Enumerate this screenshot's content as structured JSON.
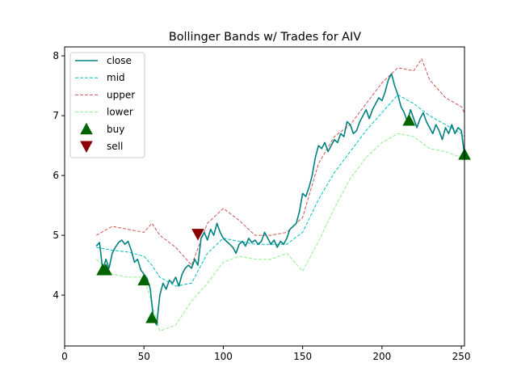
{
  "chart_data": {
    "type": "line",
    "title": "Bollinger Bands w/ Trades for AIV",
    "xlabel": "",
    "ylabel": "",
    "xlim": [
      0,
      252
    ],
    "ylim": [
      3.15,
      8.15
    ],
    "xticks": [
      0,
      50,
      100,
      150,
      200,
      250
    ],
    "yticks": [
      4,
      5,
      6,
      7,
      8
    ],
    "grid": false,
    "legend_location": "upper-left",
    "series": [
      {
        "name": "close",
        "color": "#008080",
        "style": "solid",
        "x": [
          20,
          22,
          24,
          26,
          28,
          30,
          32,
          34,
          36,
          38,
          40,
          42,
          44,
          46,
          48,
          50,
          52,
          54,
          56,
          58,
          60,
          62,
          64,
          66,
          68,
          70,
          72,
          74,
          76,
          78,
          80,
          82,
          84,
          86,
          88,
          90,
          92,
          94,
          96,
          98,
          100,
          102,
          104,
          106,
          108,
          110,
          112,
          114,
          116,
          118,
          120,
          122,
          124,
          126,
          128,
          130,
          132,
          134,
          136,
          138,
          140,
          142,
          144,
          146,
          148,
          150,
          152,
          154,
          156,
          158,
          160,
          162,
          164,
          166,
          168,
          170,
          172,
          174,
          176,
          178,
          180,
          182,
          184,
          186,
          188,
          190,
          192,
          194,
          196,
          198,
          200,
          202,
          204,
          206,
          208,
          210,
          212,
          214,
          216,
          218,
          220,
          222,
          224,
          226,
          228,
          230,
          232,
          234,
          236,
          238,
          240,
          242,
          244,
          246,
          248,
          250,
          252
        ],
        "values": [
          4.82,
          4.88,
          4.42,
          4.6,
          4.45,
          4.7,
          4.8,
          4.88,
          4.92,
          4.85,
          4.9,
          4.75,
          4.55,
          4.6,
          4.42,
          4.35,
          4.28,
          4.1,
          3.6,
          3.5,
          4.0,
          4.2,
          4.1,
          4.25,
          4.2,
          4.3,
          4.15,
          4.35,
          4.45,
          4.5,
          4.45,
          4.6,
          4.5,
          4.95,
          5.05,
          4.92,
          5.1,
          5.0,
          5.2,
          5.05,
          4.95,
          4.9,
          4.85,
          4.8,
          4.7,
          4.85,
          4.9,
          4.82,
          4.95,
          4.88,
          4.92,
          4.85,
          4.9,
          5.05,
          4.95,
          4.85,
          4.92,
          4.8,
          4.9,
          4.85,
          4.95,
          5.1,
          5.15,
          5.2,
          5.4,
          5.7,
          5.65,
          5.8,
          6.0,
          6.3,
          6.5,
          6.45,
          6.55,
          6.4,
          6.5,
          6.6,
          6.55,
          6.7,
          6.65,
          6.9,
          6.85,
          6.7,
          6.75,
          6.9,
          7.0,
          7.1,
          6.95,
          7.1,
          7.2,
          7.3,
          7.25,
          7.4,
          7.6,
          7.7,
          7.5,
          7.35,
          7.15,
          7.05,
          6.9,
          7.1,
          6.95,
          6.8,
          6.95,
          7.05,
          6.9,
          6.8,
          6.7,
          6.85,
          6.75,
          6.6,
          6.8,
          6.7,
          6.85,
          6.7,
          6.8,
          6.75,
          6.35
        ]
      },
      {
        "name": "mid",
        "color": "#00bfbf",
        "style": "dashed",
        "x": [
          20,
          30,
          40,
          50,
          55,
          60,
          70,
          80,
          90,
          100,
          110,
          120,
          130,
          140,
          150,
          160,
          170,
          180,
          190,
          200,
          210,
          220,
          230,
          240,
          250,
          252
        ],
        "values": [
          4.8,
          4.75,
          4.72,
          4.65,
          4.5,
          4.3,
          4.15,
          4.2,
          4.7,
          4.95,
          4.9,
          4.85,
          4.85,
          4.85,
          5.05,
          5.6,
          6.05,
          6.4,
          6.75,
          7.05,
          7.35,
          7.2,
          7.0,
          6.85,
          6.7,
          6.65
        ]
      },
      {
        "name": "upper",
        "color": "#cc5555",
        "style": "dashed",
        "x": [
          20,
          30,
          40,
          50,
          55,
          60,
          70,
          80,
          90,
          100,
          110,
          120,
          130,
          140,
          150,
          160,
          170,
          180,
          190,
          200,
          210,
          220,
          225,
          230,
          240,
          250,
          252
        ],
        "values": [
          5.0,
          5.15,
          5.1,
          5.05,
          5.2,
          5.0,
          4.8,
          4.5,
          5.2,
          5.45,
          5.25,
          5.0,
          5.0,
          5.05,
          5.3,
          6.2,
          6.65,
          6.85,
          7.2,
          7.55,
          7.8,
          7.75,
          7.95,
          7.6,
          7.3,
          7.15,
          7.05
        ]
      },
      {
        "name": "lower",
        "color": "#90ee90",
        "style": "dashed",
        "x": [
          20,
          30,
          40,
          50,
          55,
          60,
          70,
          80,
          90,
          100,
          110,
          120,
          130,
          140,
          150,
          160,
          170,
          180,
          190,
          200,
          210,
          220,
          230,
          240,
          250,
          252
        ],
        "values": [
          4.6,
          4.35,
          4.3,
          4.3,
          3.85,
          3.4,
          3.5,
          3.9,
          4.2,
          4.55,
          4.65,
          4.6,
          4.6,
          4.7,
          4.4,
          4.9,
          5.45,
          5.95,
          6.3,
          6.55,
          6.7,
          6.65,
          6.45,
          6.4,
          6.3,
          6.25
        ]
      }
    ],
    "markers": [
      {
        "name": "buy",
        "color": "#006400",
        "symbol": "triangle-up",
        "points": [
          {
            "x": 24,
            "y": 4.42
          },
          {
            "x": 26,
            "y": 4.42
          },
          {
            "x": 50,
            "y": 4.25
          },
          {
            "x": 55,
            "y": 3.62
          },
          {
            "x": 217,
            "y": 6.92
          },
          {
            "x": 252,
            "y": 6.35
          }
        ]
      },
      {
        "name": "sell",
        "color": "#8b0000",
        "symbol": "triangle-down",
        "points": [
          {
            "x": 84,
            "y": 5.02
          }
        ]
      }
    ]
  }
}
